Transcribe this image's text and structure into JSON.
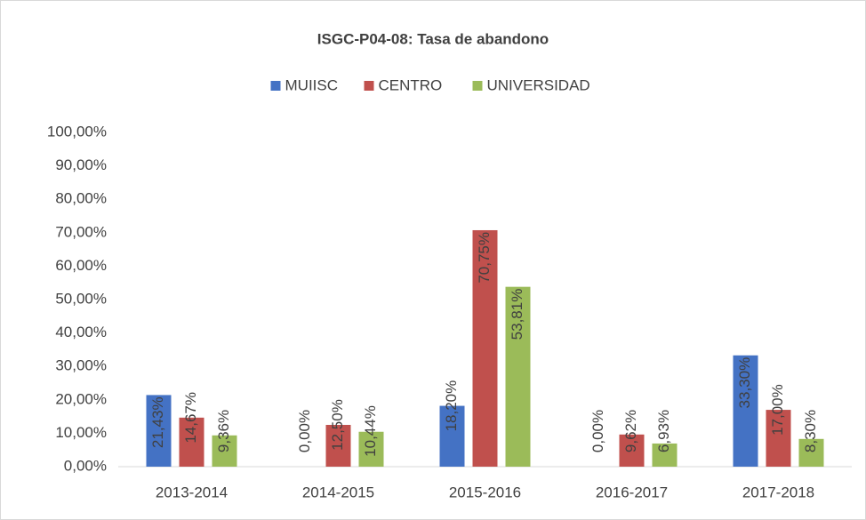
{
  "chart_data": {
    "type": "bar",
    "title": "ISGC-P04-08: Tasa de abandono",
    "categories": [
      "2013-2014",
      "2014-2015",
      "2015-2016",
      "2016-2017",
      "2017-2018"
    ],
    "series": [
      {
        "name": "MUIISC",
        "color": "#4472c4",
        "values": [
          21.43,
          0,
          18.2,
          0,
          33.3
        ],
        "value_labels": [
          "21,43%",
          "0,00%",
          "18,20%",
          "0,00%",
          "33,30%"
        ]
      },
      {
        "name": "CENTRO",
        "color": "#c0504d",
        "values": [
          14.67,
          12.5,
          70.75,
          9.62,
          17.0
        ],
        "value_labels": [
          "14,67%",
          "12,50%",
          "70,75%",
          "9,62%",
          "17,00%"
        ]
      },
      {
        "name": "UNIVERSIDAD",
        "color": "#9bbb59",
        "values": [
          9.36,
          10.44,
          53.81,
          6.93,
          8.3
        ],
        "value_labels": [
          "9,36%",
          "10,44%",
          "53,81%",
          "6,93%",
          "8,30%"
        ]
      }
    ],
    "ylim": [
      0,
      100
    ],
    "yticks": [
      {
        "value": 0,
        "label": "0,00%"
      },
      {
        "value": 10,
        "label": "10,00%"
      },
      {
        "value": 20,
        "label": "20,00%"
      },
      {
        "value": 30,
        "label": "30,00%"
      },
      {
        "value": 40,
        "label": "40,00%"
      },
      {
        "value": 50,
        "label": "50,00%"
      },
      {
        "value": 60,
        "label": "60,00%"
      },
      {
        "value": 70,
        "label": "70,00%"
      },
      {
        "value": 80,
        "label": "80,00%"
      },
      {
        "value": 90,
        "label": "90,00%"
      },
      {
        "value": 100,
        "label": "100,00%"
      }
    ],
    "grid": false,
    "legend": "top"
  }
}
